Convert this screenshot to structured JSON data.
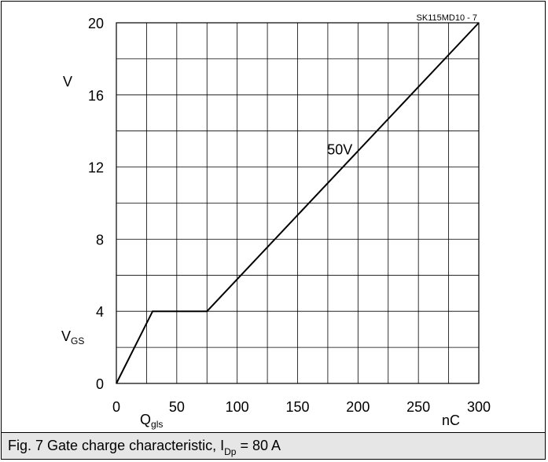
{
  "chart_data": {
    "type": "line",
    "title": "",
    "figure_id": "SK115MD10 - 7",
    "xlabel_unit": "nC",
    "xlabel_symbol": {
      "main": "Q",
      "sub": "gls"
    },
    "ylabel_unit": "V",
    "ylabel_symbol": {
      "main": "V",
      "sub": "GS"
    },
    "xlim": [
      0,
      300
    ],
    "ylim": [
      0,
      20
    ],
    "x_ticks": [
      0,
      50,
      100,
      150,
      200,
      250,
      300
    ],
    "y_ticks": [
      0,
      4,
      8,
      12,
      16,
      20
    ],
    "x_minor_step": 25,
    "y_minor_step": 2,
    "grid": true,
    "series": [
      {
        "name": "50V",
        "x": [
          0,
          30,
          75,
          300
        ],
        "y": [
          0,
          4,
          4,
          20
        ]
      }
    ],
    "series_label_position": {
      "x": 185,
      "y": 13
    }
  },
  "caption": {
    "prefix": "Fig. 7 Gate charge characteristic, I",
    "sub": "Dp",
    "suffix": " = 80 A"
  }
}
